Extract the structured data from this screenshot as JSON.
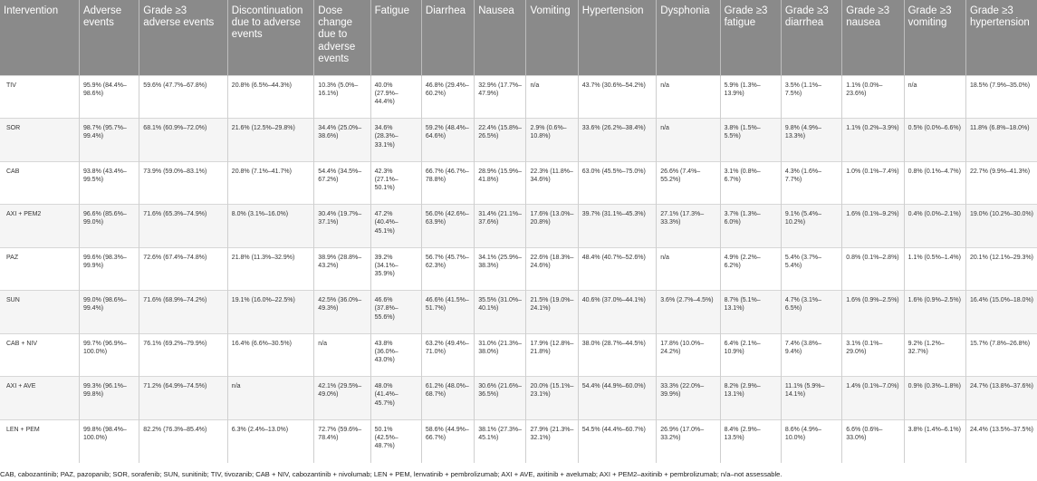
{
  "headers": [
    "Intervention",
    "Adverse events",
    "Grade ≥3 adverse events",
    "Discontinuation due to adverse events",
    "Dose change due to adverse events",
    "Fatigue",
    "Diarrhea",
    "Nausea",
    "Vomiting",
    "Hypertension",
    "Dysphonia",
    "Grade ≥3 fatigue",
    "Grade ≥3 diarrhea",
    "Grade ≥3 nausea",
    "Grade ≥3 vomiting",
    "Grade ≥3 hypertension"
  ],
  "rows": [
    [
      "TIV",
      "95.9% (84.4%–98.6%)",
      "59.6% (47.7%–67.8%)",
      "20.8% (6.5%–44.3%)",
      "10.3% (5.0%–16.1%)",
      "40.0% (27.9%–44.4%)",
      "46.8% (29.4%–60.2%)",
      "32.9% (17.7%–47.9%)",
      "n/a",
      "43.7% (30.6%–54.2%)",
      "n/a",
      "5.9% (1.3%–13.9%)",
      "3.5% (1.1%–7.5%)",
      "1.1% (0.0%–23.6%)",
      "n/a",
      "18.5% (7.9%–35.0%)"
    ],
    [
      "SOR",
      "98.7% (95.7%–99.4%)",
      "68.1% (60.9%–72.0%)",
      "21.6% (12.5%–29.8%)",
      "34.4% (25.0%–38.6%)",
      "34.6% (28.3%–33.1%)",
      "59.2% (48.4%–64.6%)",
      "22.4% (15.8%–26.5%)",
      "2.9% (0.6%–10.8%)",
      "33.6% (26.2%–38.4%)",
      "n/a",
      "3.8% (1.5%–5.5%)",
      "9.8% (4.9%–13.3%)",
      "1.1% (0.2%–3.9%)",
      "0.5% (0.0%–6.6%)",
      "11.8% (6.8%–18.0%)"
    ],
    [
      "CAB",
      "93.8% (43.4%–99.5%)",
      "73.9% (59.0%–83.1%)",
      "20.8% (7.1%–41.7%)",
      "54.4% (34.5%–67.2%)",
      "42.3% (27.1%–50.1%)",
      "66.7% (46.7%–78.8%)",
      "28.9% (15.9%–41.8%)",
      "22.3% (11.8%–34.6%)",
      "63.0% (45.5%–75.0%)",
      "26.6% (7.4%–55.2%)",
      "3.1% (0.8%–6.7%)",
      "4.3% (1.6%–7.7%)",
      "1.0% (0.1%–7.4%)",
      "0.8% (0.1%–4.7%)",
      "22.7% (9.9%–41.3%)"
    ],
    [
      "AXI + PEM2",
      "96.6% (85.6%–99.0%)",
      "71.6% (65.3%–74.9%)",
      "8.0% (3.1%–16.0%)",
      "30.4% (19.7%–37.1%)",
      "47.2% (40.4%–45.1%)",
      "56.0% (42.6%–63.9%)",
      "31.4% (21.1%–37.6%)",
      "17.6% (13.0%–20.8%)",
      "39.7% (31.1%–45.3%)",
      "27.1% (17.3%–33.3%)",
      "3.7% (1.3%–6.0%)",
      "9.1% (5.4%–10.2%)",
      "1.6% (0.1%–9.2%)",
      "0.4% (0.0%–2.1%)",
      "19.0% (10.2%–30.0%)"
    ],
    [
      "PAZ",
      "99.6% (98.3%–99.9%)",
      "72.6% (67.4%–74.8%)",
      "21.8% (11.3%–32.9%)",
      "38.9% (28.8%–43.2%)",
      "39.2% (34.1%–35.9%)",
      "56.7% (45.7%–62.3%)",
      "34.1% (25.9%–38.3%)",
      "22.6% (18.3%–24.6%)",
      "48.4% (40.7%–52.6%)",
      "n/a",
      "4.9% (2.2%–6.2%)",
      "5.4% (3.7%–5.4%)",
      "0.8% (0.1%–2.8%)",
      "1.1% (0.5%–1.4%)",
      "20.1% (12.1%–29.3%)"
    ],
    [
      "SUN",
      "99.0% (98.6%–99.4%)",
      "71.6% (68.9%–74.2%)",
      "19.1% (16.0%–22.5%)",
      "42.5% (36.0%–49.3%)",
      "46.6% (37.8%–55.6%)",
      "46.6% (41.5%–51.7%)",
      "35.5% (31.0%–40.1%)",
      "21.5% (19.0%–24.1%)",
      "40.6% (37.0%–44.1%)",
      "3.6% (2.7%–4.5%)",
      "8.7% (5.1%–13.1%)",
      "4.7% (3.1%–6.5%)",
      "1.6% (0.9%–2.5%)",
      "1.6% (0.9%–2.5%)",
      "16.4% (15.0%–18.0%)"
    ],
    [
      "CAB + NIV",
      "99.7% (96.9%–100.0%)",
      "76.1% (69.2%–79.9%)",
      "16.4% (6.6%–30.5%)",
      "n/a",
      "43.8% (36.0%–43.0%)",
      "63.2% (49.4%–71.0%)",
      "31.0% (21.3%–38.0%)",
      "17.9% (12.8%–21.8%)",
      "38.0% (28.7%–44.5%)",
      "17.8% (10.0%–24.2%)",
      "6.4% (2.1%–10.9%)",
      "7.4% (3.8%–9.4%)",
      "3.1% (0.1%–29.0%)",
      "9.2% (1.2%–32.7%)",
      "15.7% (7.8%–26.8%)"
    ],
    [
      "AXI + AVE",
      "99.3% (96.1%–99.8%)",
      "71.2% (64.9%–74.5%)",
      "n/a",
      "42.1% (29.5%–49.0%)",
      "48.0% (41.4%–45.7%)",
      "61.2% (48.0%–68.7%)",
      "30.6% (21.6%–36.5%)",
      "20.0% (15.1%–23.1%)",
      "54.4% (44.9%–60.0%)",
      "33.3% (22.0%–39.9%)",
      "8.2% (2.9%–13.1%)",
      "11.1% (5.9%–14.1%)",
      "1.4% (0.1%–7.0%)",
      "0.9% (0.3%–1.8%)",
      "24.7% (13.8%–37.6%)"
    ],
    [
      "LEN + PEM",
      "99.8% (98.4%–100.0%)",
      "82.2% (76.3%–85.4%)",
      "6.3% (2.4%–13.0%)",
      "72.7% (59.6%–78.4%)",
      "50.1% (42.5%–48.7%)",
      "58.6% (44.9%–66.7%)",
      "38.1% (27.3%–45.1%)",
      "27.9% (21.3%–32.1%)",
      "54.5% (44.4%–60.7%)",
      "26.9% (17.0%–33.2%)",
      "8.4% (2.9%–13.5%)",
      "8.6% (4.9%–10.0%)",
      "6.6% (0.6%–33.0%)",
      "3.8% (1.4%–6.1%)",
      "24.4% (13.5%–37.5%)"
    ]
  ],
  "footnote": "CAB, cabozantinib; PAZ, pazopanib; SOR, sorafenib; SUN, sunitinib; TIV, tivozanib; CAB + NIV, cabozantinib + nivolumab; LEN + PEM, lenvatinib + pembrolizumab; AXI + AVE, axitinib + avelumab; AXI + PEM2–axitinib + pembrolizumab; n/a–not assessable."
}
